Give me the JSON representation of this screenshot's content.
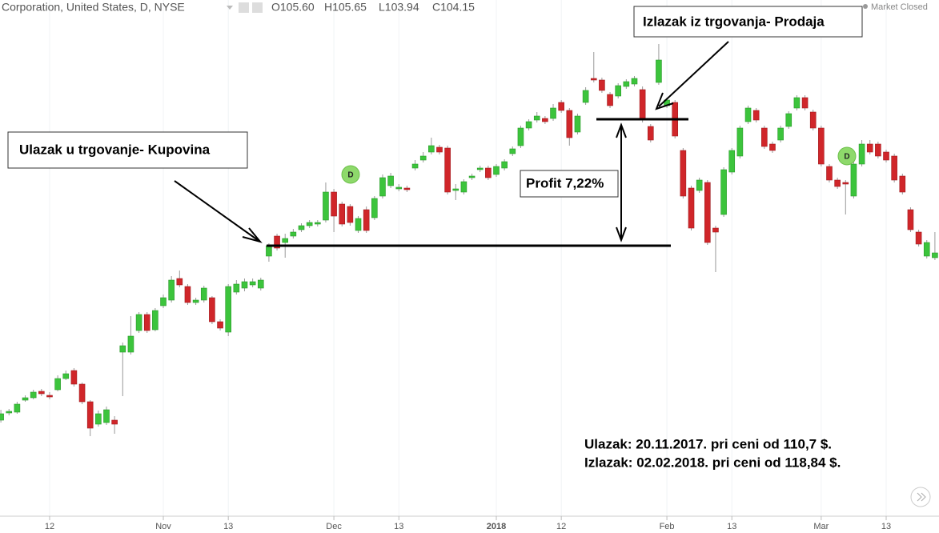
{
  "chart_data": {
    "type": "candlestick",
    "title": "Corporation, United States, D, NYSE",
    "ohlc_labels": [
      "O105.60",
      "H105.65",
      "L103.94",
      "C104.15"
    ],
    "status": "Market Closed",
    "annotations": {
      "entry": "Ulazak u trgovanje- Kupovina",
      "exit": "Izlazak iz trgovanja- Prodaja",
      "profit": "Profit 7,22%",
      "entry_note": "Ulazak: 20.11.2017. pri ceni od 110,7 $.",
      "exit_note": "Izlazak: 02.02.2018. pri ceni od 118,84 $."
    },
    "dividend_markers": [
      "D",
      "D"
    ],
    "up_color": "#3cc43c",
    "down_color": "#d0262a",
    "ylim": [
      93.75,
      126
    ],
    "categories": [
      null,
      null,
      null,
      null,
      null,
      null,
      "12",
      null,
      null,
      null,
      null,
      null,
      null,
      null,
      null,
      null,
      null,
      null,
      null,
      null,
      "Nov",
      null,
      null,
      null,
      null,
      null,
      null,
      null,
      "13",
      null,
      null,
      null,
      null,
      null,
      null,
      null,
      null,
      null,
      null,
      null,
      null,
      "Dec",
      null,
      null,
      null,
      null,
      null,
      null,
      null,
      "13",
      null,
      null,
      null,
      null,
      null,
      null,
      null,
      null,
      null,
      null,
      null,
      "2018",
      null,
      null,
      null,
      null,
      null,
      null,
      null,
      "12",
      null,
      null,
      null,
      null,
      null,
      null,
      null,
      null,
      null,
      null,
      null,
      null,
      "Feb",
      null,
      null,
      null,
      null,
      null,
      null,
      null,
      "13",
      null,
      null,
      null,
      null,
      null,
      null,
      null,
      null,
      null,
      null,
      "Mar",
      null,
      null,
      null,
      null,
      null,
      null,
      null,
      "13",
      null,
      null,
      null,
      null,
      null,
      null
    ],
    "open": [
      99.75,
      100.2,
      100.25,
      101,
      101.15,
      101.55,
      101.3,
      101.65,
      102.35,
      102.85,
      102,
      100.9,
      99.5,
      99.6,
      99.75,
      104,
      104,
      105.35,
      106.35,
      105.4,
      106.9,
      107.25,
      108.6,
      108.1,
      107.1,
      107.25,
      107.4,
      105.9,
      105.25,
      107.75,
      108,
      108.2,
      108,
      110,
      111.25,
      110.85,
      111.25,
      111.65,
      111.9,
      112,
      112.25,
      114,
      113.25,
      113.1,
      111.6,
      112.9,
      112.4,
      113.75,
      114.4,
      114.2,
      114.25,
      115.5,
      116,
      116.5,
      116.8,
      116.75,
      114.1,
      114,
      114.9,
      115.4,
      115.5,
      115.1,
      115.5,
      116.4,
      116.9,
      118,
      118.5,
      118.6,
      118.6,
      119.6,
      119.1,
      117.75,
      119.6,
      121.1,
      121,
      120.1,
      120,
      120.6,
      120.75,
      120.4,
      118.1,
      120.85,
      119.4,
      119.6,
      116.6,
      114.25,
      114.1,
      114.6,
      111.75,
      112.6,
      115.25,
      116.25,
      118.4,
      119.1,
      118,
      117,
      117.25,
      118.1,
      119.25,
      119.9,
      119,
      118,
      115.6,
      114.75,
      114.6,
      113.75,
      115.75,
      117,
      117,
      116.5,
      116.25,
      115,
      112.9,
      111.5,
      110,
      109.9
    ],
    "high": [
      100.4,
      100.45,
      100.9,
      101.3,
      101.65,
      101.7,
      101.5,
      102.55,
      102.85,
      103,
      102.1,
      101,
      100.35,
      100.6,
      100,
      104.6,
      106.25,
      106.5,
      106.5,
      106.75,
      107.6,
      108.75,
      109.1,
      108.25,
      107.4,
      108.15,
      107.5,
      106.05,
      108.25,
      108.5,
      108.6,
      108.6,
      108.65,
      110.8,
      111.4,
      111.4,
      111.7,
      112.05,
      112.25,
      112.25,
      114.6,
      114.2,
      113.4,
      113.25,
      112.5,
      113.1,
      113.75,
      115.1,
      115.2,
      114.5,
      114.4,
      116,
      116.5,
      117.4,
      116.95,
      116.9,
      114.5,
      114.8,
      115.15,
      115.65,
      115.65,
      115.75,
      116.05,
      116.85,
      118.15,
      118.55,
      119,
      118.75,
      119.5,
      119.75,
      119.25,
      118.9,
      120.55,
      122.75,
      121.15,
      120.25,
      120.8,
      121.05,
      121.25,
      120.6,
      118.25,
      123.25,
      119.9,
      119.75,
      116.75,
      114.4,
      114.9,
      114.75,
      111.9,
      115.55,
      116.75,
      118.15,
      119.4,
      119.25,
      118.15,
      117.15,
      118.15,
      119.05,
      120.05,
      120.05,
      119.15,
      118.15,
      115.75,
      114.9,
      114.75,
      115.9,
      117.25,
      117.25,
      117.15,
      116.65,
      116.4,
      115.15,
      113.05,
      111.65,
      111,
      111.5
    ],
    "low": [
      99.6,
      100.05,
      100.15,
      100.9,
      101.05,
      101.25,
      101.05,
      101.55,
      102.25,
      101.85,
      100.75,
      98.75,
      99.35,
      99.45,
      98.9,
      101.25,
      103.85,
      105.2,
      105.2,
      105.3,
      106.75,
      107.1,
      108.05,
      106.95,
      106.95,
      107.1,
      105.75,
      105.35,
      105,
      107.6,
      107.8,
      108.05,
      107.85,
      109.65,
      110.35,
      109.9,
      111.1,
      111.5,
      111.75,
      111.85,
      112.1,
      111.5,
      111.85,
      111.9,
      111.45,
      111.45,
      112.25,
      113.6,
      114.25,
      114.05,
      114,
      115.35,
      115.85,
      116.35,
      116.35,
      113.85,
      113.5,
      113.85,
      114.75,
      115.25,
      114.75,
      114.95,
      115.35,
      116.25,
      116.75,
      117.85,
      118.35,
      118.25,
      118.45,
      118.95,
      116.9,
      117.6,
      119.45,
      120.85,
      120.2,
      119.25,
      119.85,
      120.45,
      120.6,
      118.35,
      117.1,
      120.7,
      119.25,
      117.35,
      113.6,
      111.6,
      113.95,
      110.7,
      109,
      112.45,
      115.1,
      116.1,
      118.25,
      118.35,
      116.7,
      116.45,
      117.1,
      117.95,
      119.1,
      119.1,
      117.85,
      115.6,
      114.6,
      114.2,
      112.6,
      113.6,
      115.6,
      116.35,
      116.1,
      115.85,
      114.6,
      113.85,
      111.5,
      110.6,
      109.85,
      109.75
    ],
    "close": [
      100.15,
      100.3,
      100.75,
      101.15,
      101.5,
      101.4,
      101.2,
      102.35,
      102.65,
      102,
      100.9,
      99.25,
      100.15,
      100.4,
      99.5,
      104.4,
      105,
      106.35,
      105.35,
      106.6,
      107.4,
      108.5,
      108.2,
      107.1,
      107.25,
      108,
      105.9,
      105.5,
      108.1,
      108.25,
      108.4,
      108.4,
      108.5,
      110.65,
      110.5,
      111.1,
      111.5,
      111.9,
      112.1,
      112.1,
      114,
      112.5,
      112,
      112.1,
      112.35,
      111.6,
      113.6,
      114.9,
      115,
      114.3,
      114.15,
      115.75,
      116.25,
      116.9,
      116.5,
      114,
      114.2,
      114.65,
      115,
      115.5,
      114.9,
      115.6,
      115.9,
      116.7,
      118,
      118.4,
      118.75,
      118.4,
      119.25,
      119.1,
      117.4,
      118.75,
      120.35,
      121,
      120.35,
      119.4,
      120.65,
      120.9,
      121.1,
      118.5,
      117.25,
      122.25,
      119.75,
      117.5,
      113.75,
      111.75,
      114.75,
      110.85,
      111.5,
      115.4,
      116.6,
      118,
      119.25,
      118.5,
      116.85,
      116.6,
      118,
      118.9,
      119.9,
      119.25,
      118,
      115.75,
      114.75,
      114.35,
      114.5,
      115.75,
      117,
      116.5,
      116.25,
      116,
      114.75,
      114,
      111.65,
      110.75,
      110.85,
      110.2
    ]
  }
}
